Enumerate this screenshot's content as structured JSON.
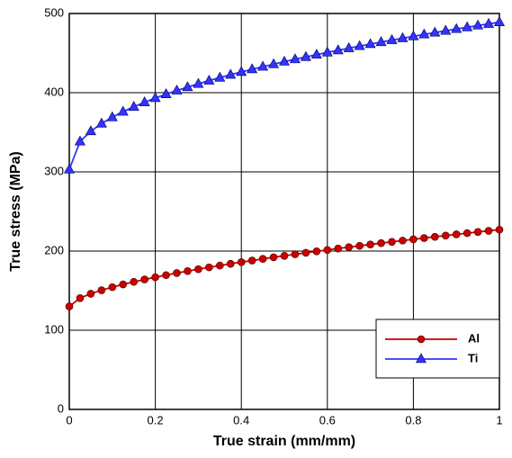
{
  "chart_data": {
    "type": "line",
    "x_label": "True strain (mm/mm)",
    "y_label": "True stress (MPa)",
    "x": [
      0,
      0.025,
      0.05,
      0.075,
      0.1,
      0.125,
      0.15,
      0.175,
      0.2,
      0.225,
      0.25,
      0.275,
      0.3,
      0.325,
      0.35,
      0.375,
      0.4,
      0.425,
      0.45,
      0.475,
      0.5,
      0.525,
      0.55,
      0.575,
      0.6,
      0.625,
      0.65,
      0.675,
      0.7,
      0.725,
      0.75,
      0.775,
      0.8,
      0.825,
      0.85,
      0.875,
      0.9,
      0.925,
      0.95,
      0.975,
      1
    ],
    "series": [
      {
        "name": "Al",
        "color": "#cc0000",
        "marker": "circle",
        "values": [
          130,
          140.6,
          146.1,
          150.5,
          154.4,
          157.9,
          161.1,
          164.1,
          166.9,
          169.6,
          172.2,
          174.7,
          177.1,
          179.4,
          181.7,
          183.9,
          186.0,
          188.0,
          190.1,
          192.1,
          194.0,
          195.9,
          197.8,
          199.6,
          201.4,
          203.2,
          204.9,
          206.6,
          208.3,
          210.0,
          211.6,
          213.2,
          214.8,
          216.4,
          218.0,
          219.5,
          221.1,
          222.6,
          224.1,
          225.5,
          227
        ]
      },
      {
        "name": "Ti",
        "color": "#3333ff",
        "marker": "triangle",
        "values": [
          303,
          338.4,
          351.3,
          361.0,
          369.0,
          376.0,
          382.2,
          387.9,
          393.2,
          398.1,
          402.7,
          407.0,
          411.2,
          415.2,
          419.0,
          422.7,
          426.2,
          429.6,
          432.8,
          436.0,
          439.2,
          442.2,
          445.1,
          448.0,
          450.8,
          453.5,
          456.2,
          458.8,
          461.4,
          463.9,
          466.4,
          468.8,
          471.2,
          473.6,
          475.9,
          478.2,
          480.4,
          482.6,
          484.8,
          486.9,
          489
        ]
      }
    ],
    "xlim": [
      0,
      1
    ],
    "xticks": [
      0,
      0.2,
      0.4,
      0.6,
      0.8,
      1
    ],
    "ylim": [
      0,
      500
    ],
    "yticks": [
      0,
      100,
      200,
      300,
      400,
      500
    ],
    "grid": true,
    "legend": "lower-right"
  }
}
